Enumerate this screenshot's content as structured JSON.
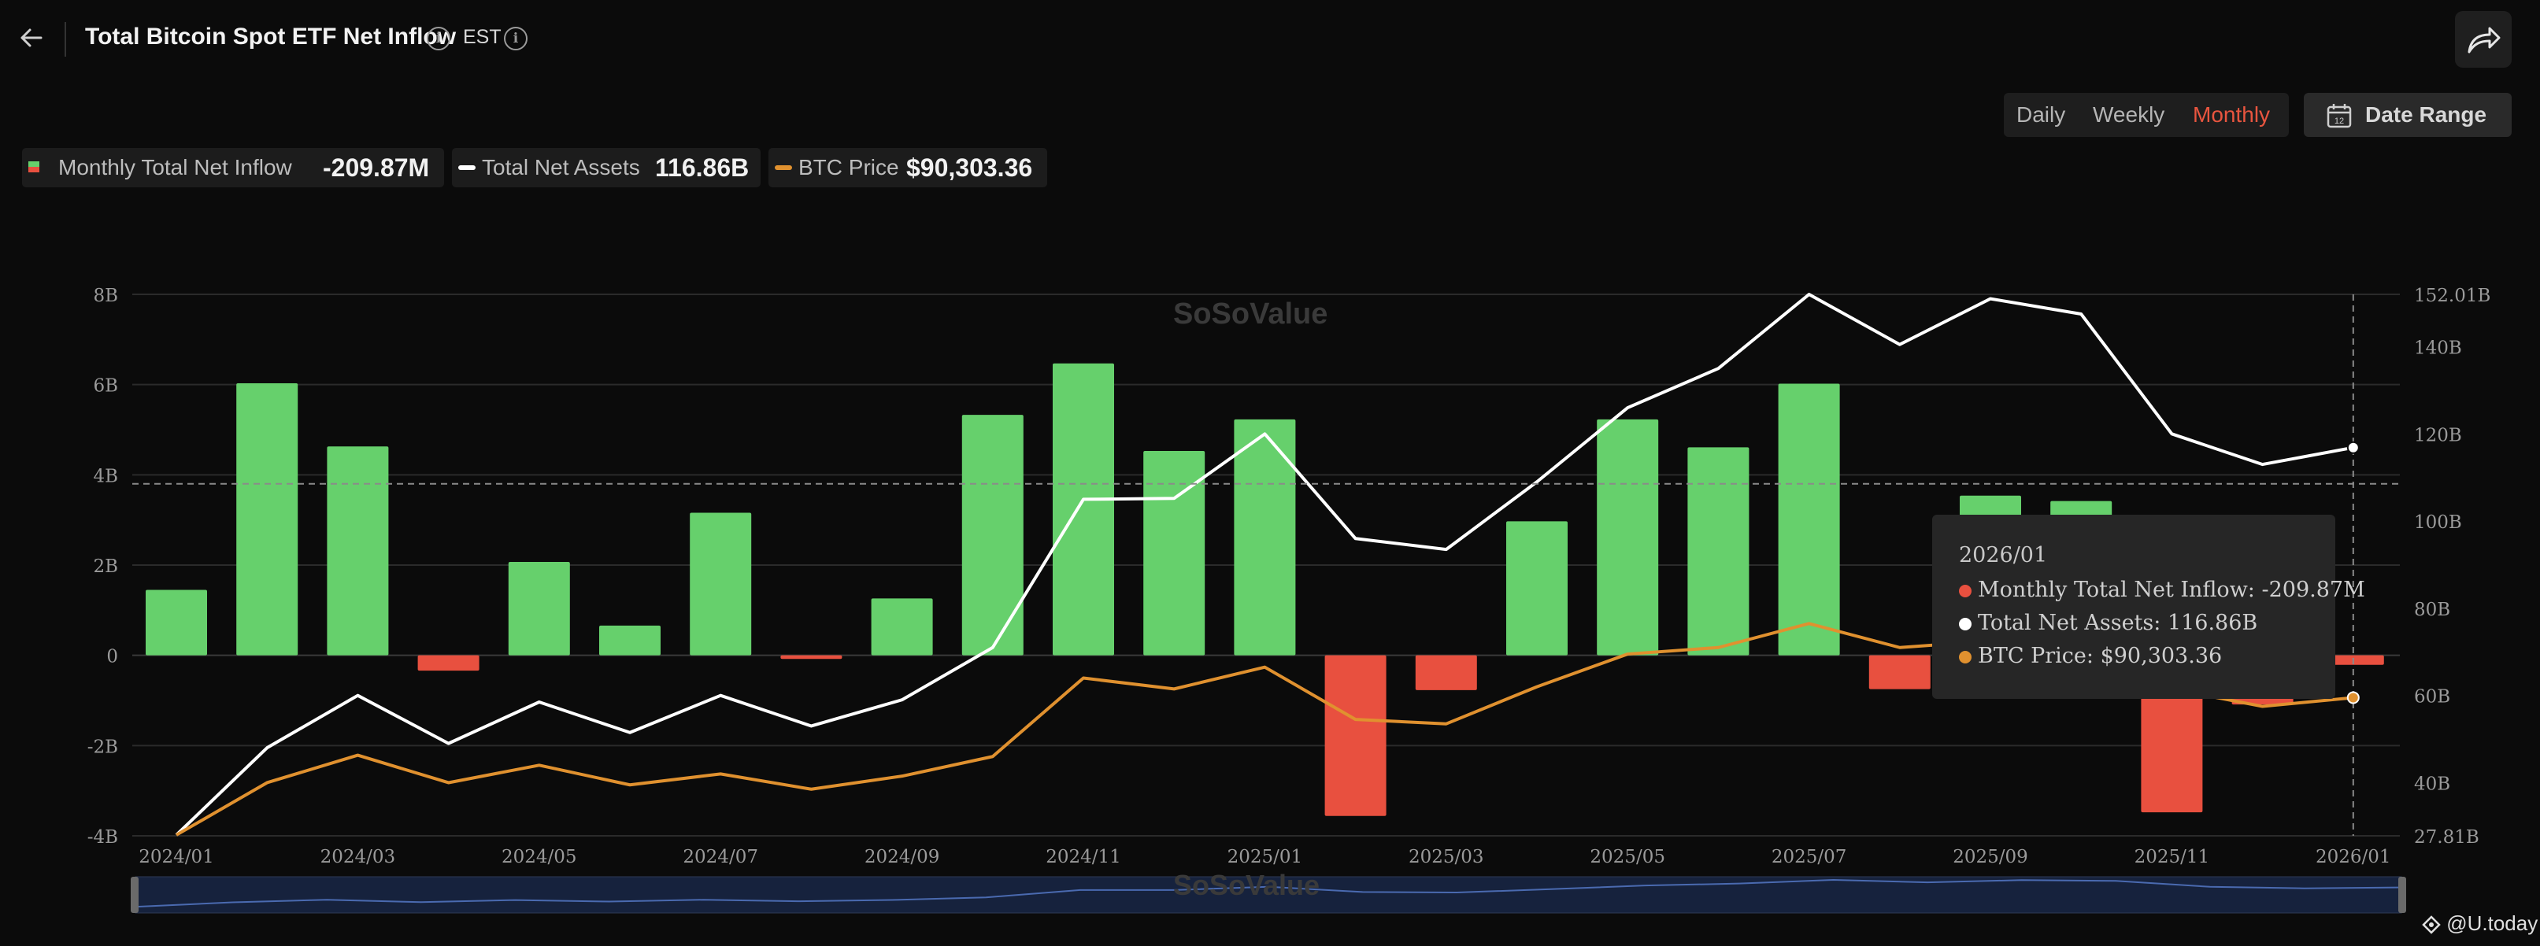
{
  "header": {
    "title": "Total Bitcoin Spot ETF Net Inflow",
    "timezone": "EST",
    "info_glyph": "i"
  },
  "controls": {
    "toggles": [
      "Daily",
      "Weekly",
      "Monthly"
    ],
    "active_toggle": "Monthly",
    "date_range_label": "Date Range",
    "calendar_day": "12"
  },
  "legend": [
    {
      "label": "Monthly Total Net Inflow",
      "value": "-209.87M"
    },
    {
      "label": "Total Net Assets",
      "value": "116.86B"
    },
    {
      "label": "BTC Price",
      "value": "$90,303.36"
    }
  ],
  "watermark": "SoSoValue",
  "tooltip": {
    "date": "2026/01",
    "rows": [
      "Monthly Total Net Inflow: -209.87M",
      "Total Net Assets: 116.86B",
      "BTC Price: $90,303.36"
    ]
  },
  "credit": "@U.today",
  "colors": {
    "positive": "#66d06c",
    "negative": "#e8503f",
    "assets_line": "#ffffff",
    "price_line": "#e0912f",
    "accent": "#e8553f"
  },
  "chart_data": {
    "type": "bar",
    "title": "Total Bitcoin Spot ETF Net Inflow",
    "categories": [
      "2024/01",
      "2024/02",
      "2024/03",
      "2024/04",
      "2024/05",
      "2024/06",
      "2024/07",
      "2024/08",
      "2024/09",
      "2024/10",
      "2024/11",
      "2024/12",
      "2025/01",
      "2025/02",
      "2025/03",
      "2025/04",
      "2025/05",
      "2025/06",
      "2025/07",
      "2025/08",
      "2025/09",
      "2025/10",
      "2025/11",
      "2025/12",
      "2026/01"
    ],
    "x_tick_labels": [
      "2024/01",
      "2024/03",
      "2024/05",
      "2024/07",
      "2024/09",
      "2024/11",
      "2025/01",
      "2025/03",
      "2025/05",
      "2025/07",
      "2025/09",
      "2025/11",
      "2026/01"
    ],
    "left_axis": {
      "ticks": [
        "8B",
        "6B",
        "4B",
        "2B",
        "0",
        "-2B",
        "-4B"
      ],
      "tick_values": [
        8,
        6,
        4,
        2,
        0,
        -2,
        -4
      ],
      "ylim": [
        -4,
        8
      ],
      "unit": "B"
    },
    "right_axis": {
      "ticks": [
        "152.01B",
        "140B",
        "120B",
        "100B",
        "80B",
        "60B",
        "40B",
        "27.81B"
      ],
      "tick_values": [
        152.01,
        140,
        120,
        100,
        80,
        60,
        40,
        27.81
      ],
      "ylim": [
        27.81,
        152.01
      ],
      "unit": "B"
    },
    "series": [
      {
        "name": "Monthly Total Net Inflow",
        "type": "bar",
        "axis": "left",
        "unit": "B",
        "values": [
          1.45,
          6.03,
          4.63,
          -0.34,
          2.07,
          0.66,
          3.16,
          -0.08,
          1.26,
          5.33,
          6.47,
          4.53,
          5.23,
          -3.56,
          -0.77,
          2.97,
          5.23,
          4.61,
          6.02,
          -0.75,
          3.54,
          3.42,
          -3.48,
          -1.09,
          -0.21
        ]
      },
      {
        "name": "Total Net Assets",
        "type": "line",
        "axis": "right",
        "unit": "B",
        "values": [
          28.0,
          48.0,
          60.0,
          49.0,
          58.5,
          51.5,
          60.0,
          53.0,
          59.0,
          71.0,
          105.0,
          105.2,
          120.0,
          96.0,
          93.5,
          109.0,
          126.0,
          135.0,
          152.0,
          140.5,
          151.0,
          147.5,
          120.0,
          113.0,
          116.86
        ]
      },
      {
        "name": "BTC Price",
        "type": "line",
        "axis": "right",
        "unit": "B-axis scale",
        "values": [
          28.0,
          40.0,
          46.3,
          40.0,
          44.0,
          39.5,
          42.0,
          38.5,
          41.5,
          46.0,
          64.0,
          61.5,
          66.5,
          54.5,
          53.5,
          62.0,
          69.5,
          71.0,
          76.5,
          71.0,
          72.5,
          68.0,
          61.5,
          57.5,
          59.5
        ]
      }
    ],
    "reference_line": {
      "axis": "left",
      "value": 3.8
    },
    "highlighted_category": "2026/01",
    "grid": true,
    "legend_position": "top-left"
  }
}
